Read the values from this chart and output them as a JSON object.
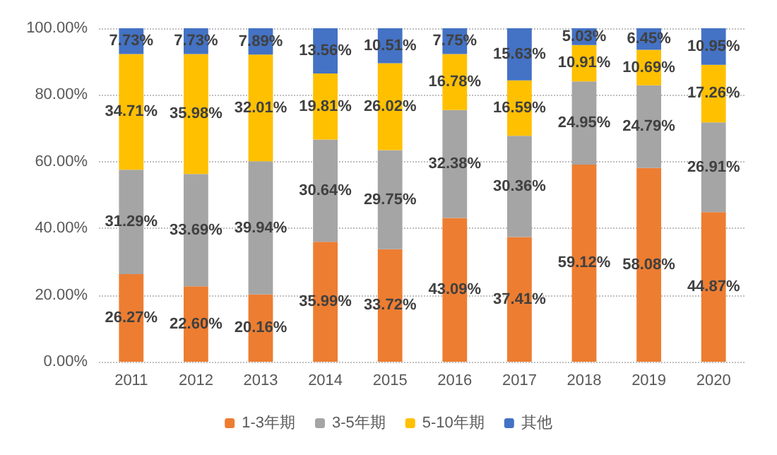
{
  "chart_data": {
    "type": "bar",
    "stacked": true,
    "categories": [
      "2011",
      "2012",
      "2013",
      "2014",
      "2015",
      "2016",
      "2017",
      "2018",
      "2019",
      "2020"
    ],
    "series": [
      {
        "name": "1-3年期",
        "color": "#ed7d31",
        "values": [
          26.27,
          22.6,
          20.16,
          35.99,
          33.72,
          43.09,
          37.41,
          59.12,
          58.08,
          44.87
        ],
        "value_labels": [
          "26.27%",
          "22.60%",
          "20.16%",
          "35.99%",
          "33.72%",
          "43.09%",
          "37.41%",
          "59.12%",
          "58.08%",
          "44.87%"
        ]
      },
      {
        "name": "3-5年期",
        "color": "#a5a5a5",
        "values": [
          31.29,
          33.69,
          39.94,
          30.64,
          29.75,
          32.38,
          30.36,
          24.95,
          24.79,
          26.91
        ],
        "value_labels": [
          "31.29%",
          "33.69%",
          "39.94%",
          "30.64%",
          "29.75%",
          "32.38%",
          "30.36%",
          "24.95%",
          "24.79%",
          "26.91%"
        ]
      },
      {
        "name": "5-10年期",
        "color": "#ffc000",
        "values": [
          34.71,
          35.98,
          32.01,
          19.81,
          26.02,
          16.78,
          16.59,
          10.91,
          10.69,
          17.26
        ],
        "value_labels": [
          "34.71%",
          "35.98%",
          "32.01%",
          "19.81%",
          "26.02%",
          "16.78%",
          "16.59%",
          "10.91%",
          "10.69%",
          "17.26%"
        ]
      },
      {
        "name": "其他",
        "color": "#4472c4",
        "values": [
          7.73,
          7.73,
          7.89,
          13.56,
          10.51,
          7.75,
          15.63,
          5.03,
          6.45,
          10.95
        ],
        "value_labels": [
          "7.73%",
          "7.73%",
          "7.89%",
          "13.56%",
          "10.51%",
          "7.75%",
          "15.63%",
          "5.03%",
          "6.45%",
          "10.95%"
        ]
      }
    ],
    "ylim": [
      0,
      100
    ],
    "yticks": [
      {
        "value": 0,
        "label": "0.00%"
      },
      {
        "value": 20,
        "label": "20.00%"
      },
      {
        "value": 40,
        "label": "40.00%"
      },
      {
        "value": 60,
        "label": "60.00%"
      },
      {
        "value": 80,
        "label": "80.00%"
      },
      {
        "value": 100,
        "label": "100.00%"
      }
    ],
    "grid": "y",
    "legend": "bottom"
  }
}
